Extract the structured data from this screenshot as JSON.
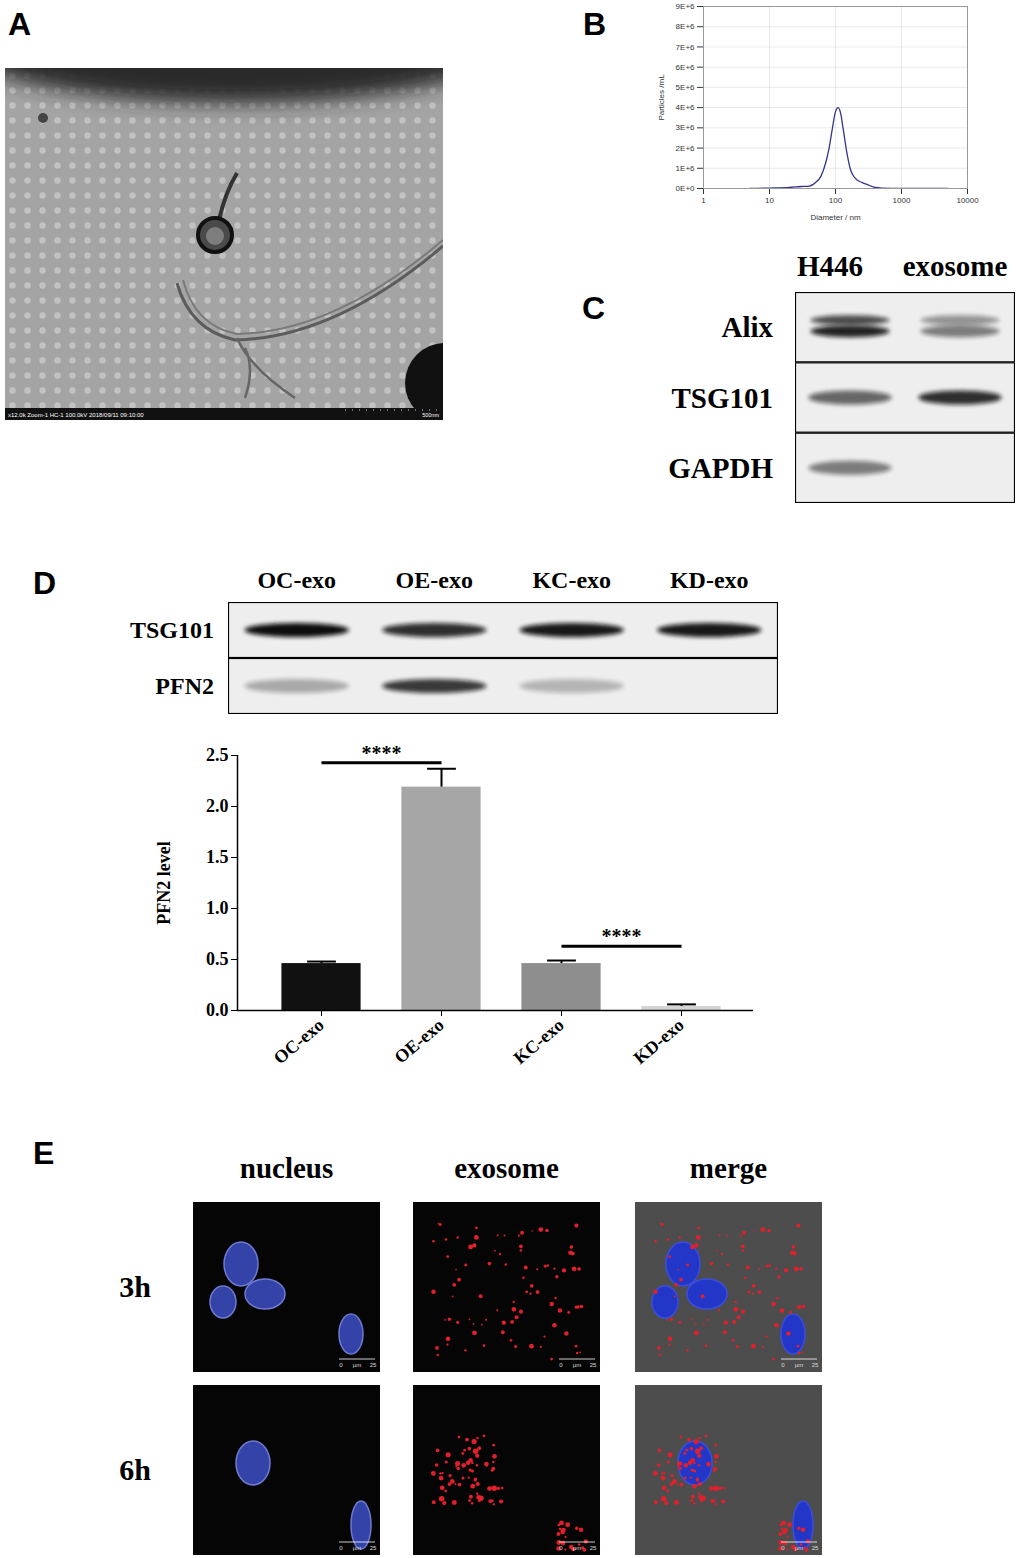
{
  "chart_data": [
    {
      "type": "line",
      "x": [
        5,
        10,
        20,
        30,
        40,
        50,
        60,
        70,
        80,
        90,
        100,
        110,
        120,
        130,
        150,
        170,
        200,
        250,
        300,
        400,
        500,
        1000,
        2000,
        5000
      ],
      "values": [
        0,
        20000,
        50000,
        100000,
        120000,
        300000,
        600000,
        1200000,
        2000000,
        3000000,
        3800000,
        4000000,
        3700000,
        3000000,
        1700000,
        900000,
        500000,
        300000,
        200000,
        50000,
        20000,
        0,
        0,
        0
      ],
      "color": "#33348e",
      "xlabel": "Diameter / nm",
      "ylabel": "Particles /mL",
      "log": "x",
      "xlim": [
        1,
        10000
      ],
      "xticks": [
        1,
        10,
        100,
        1000,
        10000
      ],
      "ylim": [
        0,
        9000000
      ],
      "yticks": [
        {
          "value": 0,
          "label": "0E+0"
        },
        {
          "value": 1000000,
          "label": "1E+6"
        },
        {
          "value": 2000000,
          "label": "2E+6"
        },
        {
          "value": 3000000,
          "label": "3E+6"
        },
        {
          "value": 4000000,
          "label": "4E+6"
        },
        {
          "value": 5000000,
          "label": "5E+6"
        },
        {
          "value": 6000000,
          "label": "6E+6"
        },
        {
          "value": 7000000,
          "label": "7E+6"
        },
        {
          "value": 8000000,
          "label": "8E+6"
        },
        {
          "value": 9000000,
          "label": "9E+6"
        }
      ],
      "grid": true
    },
    {
      "type": "bar",
      "categories": [
        "OC-exo",
        "OE-exo",
        "KC-exo",
        "KD-exo"
      ],
      "values": [
        0.46,
        2.19,
        0.46,
        0.04
      ],
      "errors": [
        0.02,
        0.18,
        0.03,
        0.02
      ],
      "colors": [
        "#111111",
        "#a6a6a6",
        "#8e8e8e",
        "#d4d4d4"
      ],
      "ylabel": "PFN2 level",
      "ylim": [
        0,
        2.5
      ],
      "yticks": [
        {
          "value": 0,
          "label": "0.0"
        },
        0.5,
        {
          "value": 1,
          "label": "1.0"
        },
        1.5,
        {
          "value": 2,
          "label": "2.0"
        },
        2.5
      ],
      "annotations": [
        {
          "text": "****",
          "from": "OC-exo",
          "to": "OE-exo",
          "y": 2.43
        },
        {
          "text": "****",
          "from": "KC-exo",
          "to": "KD-exo",
          "y": 0.63
        }
      ]
    }
  ],
  "figure": {
    "A": {
      "label": "A",
      "caption": "x12.0k Zoom-1 HC-1 100.0kV 2018/09/11 09:10:00",
      "scale_bar": "500nm"
    },
    "B": {
      "label": "B"
    },
    "C": {
      "label": "C",
      "columns": [
        "H446",
        "exosome"
      ],
      "rows": [
        {
          "name": "Alix",
          "bands": [
            0.9,
            0.5
          ]
        },
        {
          "name": "TSG101",
          "bands": [
            0.6,
            0.85
          ]
        },
        {
          "name": "GAPDH",
          "bands": [
            0.5,
            0
          ]
        }
      ]
    },
    "D": {
      "label": "D",
      "columns": [
        "OC-exo",
        "OE-exo",
        "KC-exo",
        "KD-exo"
      ],
      "rows": [
        {
          "name": "TSG101",
          "bands": [
            1,
            0.85,
            0.95,
            0.95
          ]
        },
        {
          "name": "PFN2",
          "bands": [
            0.3,
            0.8,
            0.25,
            0
          ]
        }
      ]
    },
    "E": {
      "label": "E",
      "columns": [
        "nucleus",
        "exosome",
        "merge"
      ],
      "rows": [
        "3h",
        "6h"
      ],
      "scale_bar": {
        "start": 0,
        "unit": "µm",
        "end": 25
      }
    }
  }
}
